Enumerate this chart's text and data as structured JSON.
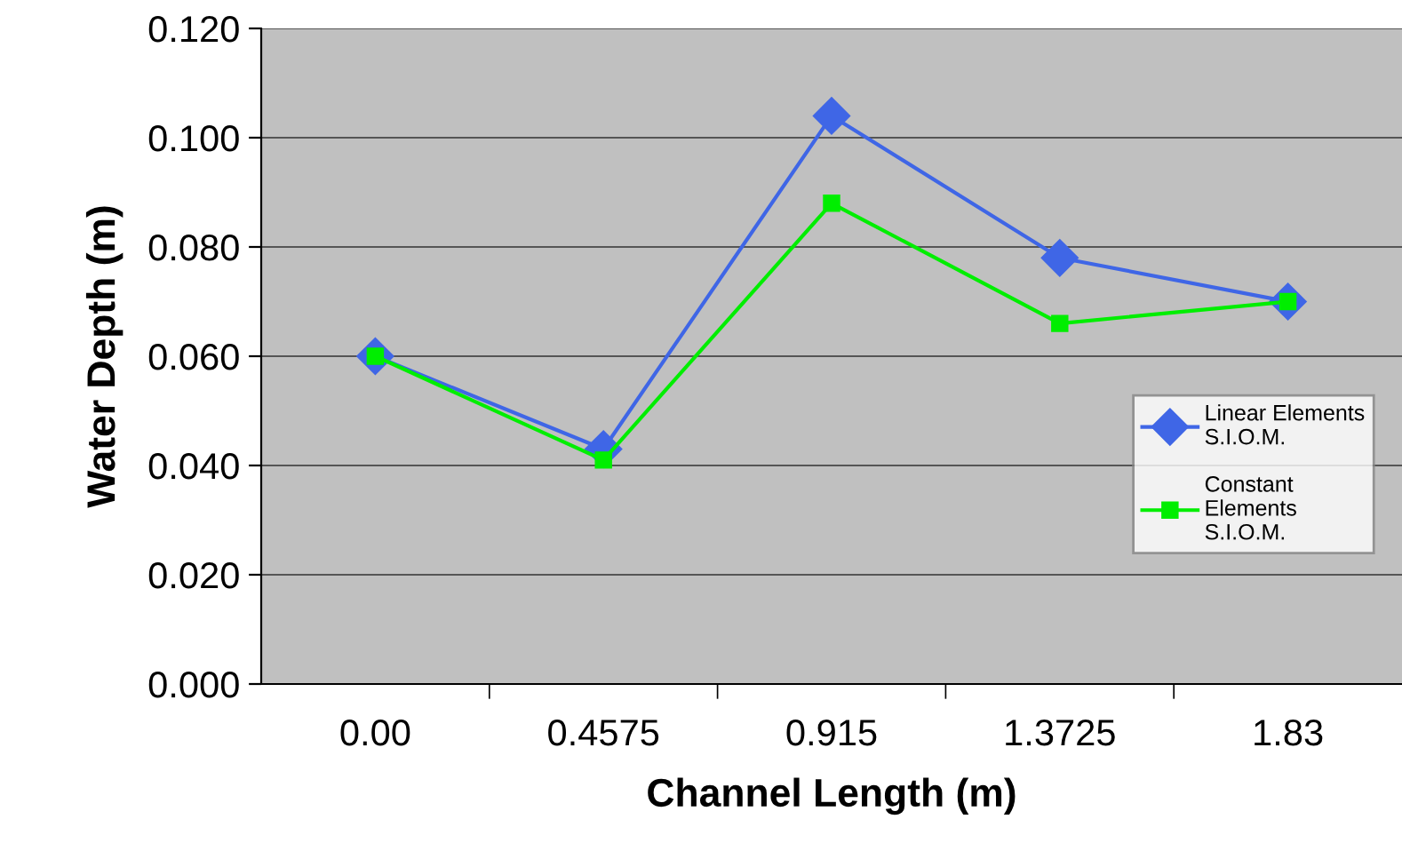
{
  "chart_data": {
    "type": "line",
    "xlabel": "Channel Length (m)",
    "ylabel": "Water Depth (m)",
    "categories": [
      "0.00",
      "0.4575",
      "0.915",
      "1.3725",
      "1.83"
    ],
    "series": [
      {
        "name": "Linear Elements\nS.I.O.M.",
        "color": "#3f66e6",
        "marker": "diamond",
        "values": [
          0.06,
          0.043,
          0.104,
          0.078,
          0.07
        ]
      },
      {
        "name": "Constant\nElements\nS.I.O.M.",
        "color": "#00ee00",
        "marker": "square",
        "values": [
          0.06,
          0.041,
          0.088,
          0.066,
          0.07
        ]
      }
    ],
    "ylim": [
      0,
      0.12
    ],
    "yticks": [
      {
        "value": 0,
        "label": "0.000"
      },
      {
        "value": 0.02,
        "label": "0.020"
      },
      {
        "value": 0.04,
        "label": "0.040"
      },
      {
        "value": 0.06,
        "label": "0.060"
      },
      {
        "value": 0.08,
        "label": "0.080"
      },
      {
        "value": 0.1,
        "label": "0.100"
      },
      {
        "value": 0.12,
        "label": "0.120"
      }
    ],
    "grid": "y",
    "legend": "right",
    "line_style": "solid"
  }
}
